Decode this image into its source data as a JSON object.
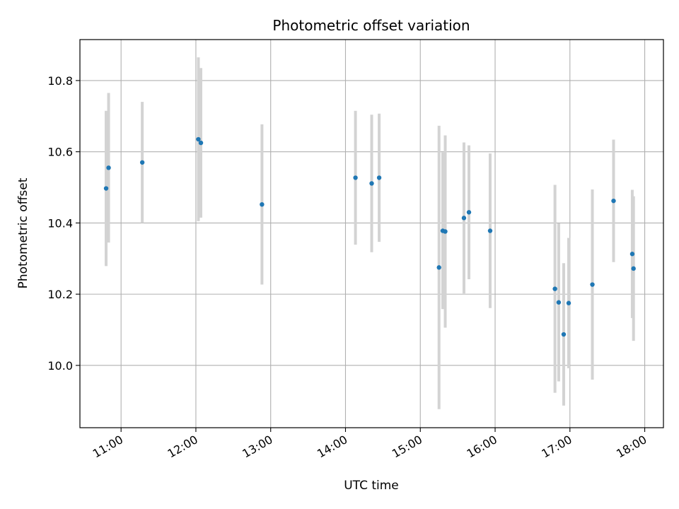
{
  "chart_data": {
    "type": "scatter",
    "title": "Photometric offset variation",
    "xlabel": "UTC time",
    "ylabel": "Photometric offset",
    "x_tick_labels": [
      "11:00",
      "12:00",
      "13:00",
      "14:00",
      "15:00",
      "16:00",
      "17:00",
      "18:00"
    ],
    "y_tick_labels": [
      "10.0",
      "10.2",
      "10.4",
      "10.6",
      "10.8"
    ],
    "y_ticks": [
      10.0,
      10.2,
      10.4,
      10.6,
      10.8
    ],
    "x_ticks": [
      "11:00",
      "12:00",
      "13:00",
      "14:00",
      "15:00",
      "16:00",
      "17:00",
      "18:00"
    ],
    "xlim": [
      "10:27",
      "18:15"
    ],
    "ylim": [
      9.825,
      10.915
    ],
    "grid": true,
    "point_color": "#1f77b4",
    "errorbar_color": "#d3d3d3",
    "points": [
      {
        "x": "10:48",
        "y": 10.497,
        "yerr": 0.218
      },
      {
        "x": "10:50",
        "y": 10.555,
        "yerr": 0.21
      },
      {
        "x": "11:17",
        "y": 10.57,
        "yerr": 0.17
      },
      {
        "x": "12:02",
        "y": 10.635,
        "yerr": 0.23
      },
      {
        "x": "12:04",
        "y": 10.625,
        "yerr": 0.21
      },
      {
        "x": "12:53",
        "y": 10.452,
        "yerr": 0.225
      },
      {
        "x": "14:08",
        "y": 10.527,
        "yerr": 0.188
      },
      {
        "x": "14:21",
        "y": 10.511,
        "yerr": 0.193
      },
      {
        "x": "14:27",
        "y": 10.527,
        "yerr": 0.18
      },
      {
        "x": "15:15",
        "y": 10.275,
        "yerr": 0.398
      },
      {
        "x": "15:18",
        "y": 10.378,
        "yerr": 0.22
      },
      {
        "x": "15:20",
        "y": 10.376,
        "yerr": 0.27
      },
      {
        "x": "15:35",
        "y": 10.414,
        "yerr": 0.212
      },
      {
        "x": "15:39",
        "y": 10.43,
        "yerr": 0.188
      },
      {
        "x": "15:56",
        "y": 10.378,
        "yerr": 0.217
      },
      {
        "x": "16:48",
        "y": 10.215,
        "yerr": 0.292
      },
      {
        "x": "16:51",
        "y": 10.177,
        "yerr": 0.222
      },
      {
        "x": "16:55",
        "y": 10.087,
        "yerr": 0.2
      },
      {
        "x": "16:59",
        "y": 10.175,
        "yerr": 0.183
      },
      {
        "x": "17:18",
        "y": 10.227,
        "yerr": 0.267
      },
      {
        "x": "17:35",
        "y": 10.462,
        "yerr": 0.172
      },
      {
        "x": "17:50",
        "y": 10.313,
        "yerr": 0.18
      },
      {
        "x": "17:51",
        "y": 10.272,
        "yerr": 0.203
      }
    ]
  }
}
